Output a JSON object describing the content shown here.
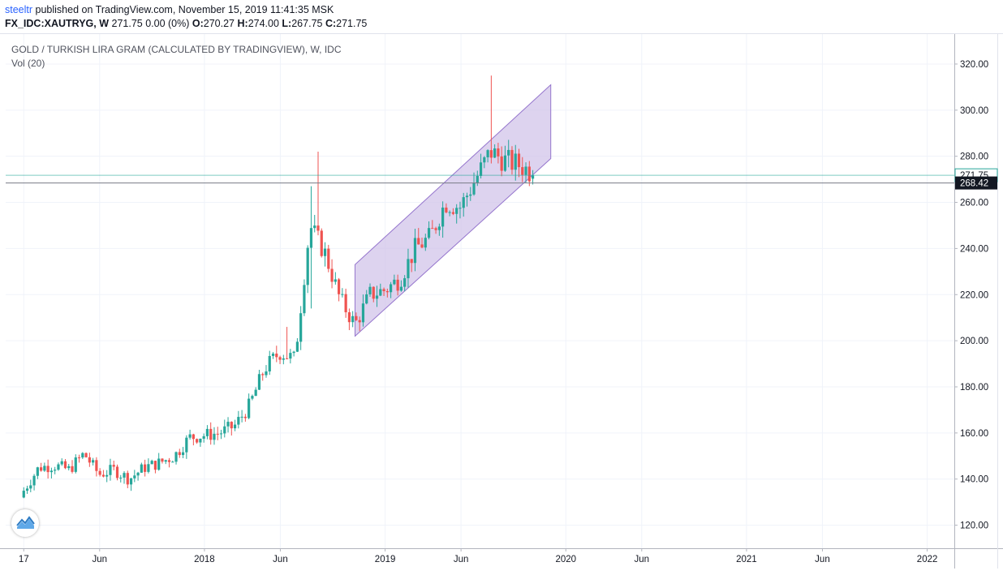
{
  "header": {
    "author": "steeltr",
    "published_text": " published on TradingView.com, November 15, 2019 11:41:35 MSK",
    "symbol": "FX_IDC:XAUTRYG, W",
    "ohlc_text": "271.75 0.00 (0%)",
    "o_label": "O:",
    "o_value": "270.27",
    "h_label": "H:",
    "h_value": "274.00",
    "l_label": "L:",
    "l_value": "267.75",
    "c_label": "C:",
    "c_value": "271.75"
  },
  "legend": {
    "title": "GOLD / TURKISH LIRA GRAM (CALCULATED BY TRADINGVIEW), W, IDC",
    "indicator": "Vol (20)"
  },
  "logo": {
    "icon": "tradingview-logo-icon"
  },
  "chart_data": {
    "type": "candlestick",
    "title": "GOLD / TURKISH LIRA GRAM (CALCULATED BY TRADINGVIEW), W, IDC",
    "ylim": [
      110,
      333
    ],
    "y_ticks": [
      120,
      140,
      160,
      180,
      200,
      220,
      240,
      260,
      280,
      300,
      320
    ],
    "x_ticks": [
      "17",
      "Jun",
      "2018",
      "Jun",
      "2019",
      "Jun",
      "2020",
      "Jun",
      "2021",
      "Jun",
      "2022"
    ],
    "grid": true,
    "colors": {
      "up": "#26a69a",
      "down": "#ef5350",
      "channel_fill": "#d1c4e9",
      "channel_line": "#9575cd",
      "last_price": "#26a69a",
      "crosshair": "#131722"
    },
    "last_price": {
      "value": 271.75,
      "label": "271.75"
    },
    "crosshair_price": {
      "value": 268.42,
      "label": "268.42"
    },
    "channel": {
      "start": "2018-11",
      "end": "2019-12",
      "upper": [
        233,
        311
      ],
      "lower": [
        202,
        279
      ]
    },
    "keypoints": [
      {
        "date": "2017-01",
        "close": 135
      },
      {
        "date": "2017-02",
        "close": 145
      },
      {
        "date": "2017-03",
        "close": 146
      },
      {
        "date": "2017-04",
        "close": 144
      },
      {
        "date": "2017-05",
        "close": 151
      },
      {
        "date": "2017-06",
        "close": 142
      },
      {
        "date": "2017-07",
        "close": 144
      },
      {
        "date": "2017-08",
        "close": 140
      },
      {
        "date": "2017-09",
        "close": 145
      },
      {
        "date": "2017-10",
        "close": 147
      },
      {
        "date": "2017-11",
        "close": 150
      },
      {
        "date": "2017-12",
        "close": 158
      },
      {
        "date": "2018-01",
        "close": 159
      },
      {
        "date": "2018-02",
        "close": 160
      },
      {
        "date": "2018-03",
        "close": 163
      },
      {
        "date": "2018-04",
        "close": 172
      },
      {
        "date": "2018-05",
        "close": 188
      },
      {
        "date": "2018-06",
        "close": 195
      },
      {
        "date": "2018-07",
        "close": 192
      },
      {
        "date": "2018-08",
        "close": 250
      },
      {
        "date": "2018-09",
        "close": 238
      },
      {
        "date": "2018-10",
        "close": 218
      },
      {
        "date": "2018-11",
        "close": 207
      },
      {
        "date": "2018-12",
        "close": 220
      },
      {
        "date": "2019-01",
        "close": 222
      },
      {
        "date": "2019-02",
        "close": 227
      },
      {
        "date": "2019-03",
        "close": 240
      },
      {
        "date": "2019-04",
        "close": 245
      },
      {
        "date": "2019-05",
        "close": 260
      },
      {
        "date": "2019-06",
        "close": 258
      },
      {
        "date": "2019-07",
        "close": 270
      },
      {
        "date": "2019-08",
        "close": 282
      },
      {
        "date": "2019-09",
        "close": 278
      },
      {
        "date": "2019-10",
        "close": 276
      },
      {
        "date": "2019-11",
        "close": 271.75
      }
    ]
  }
}
